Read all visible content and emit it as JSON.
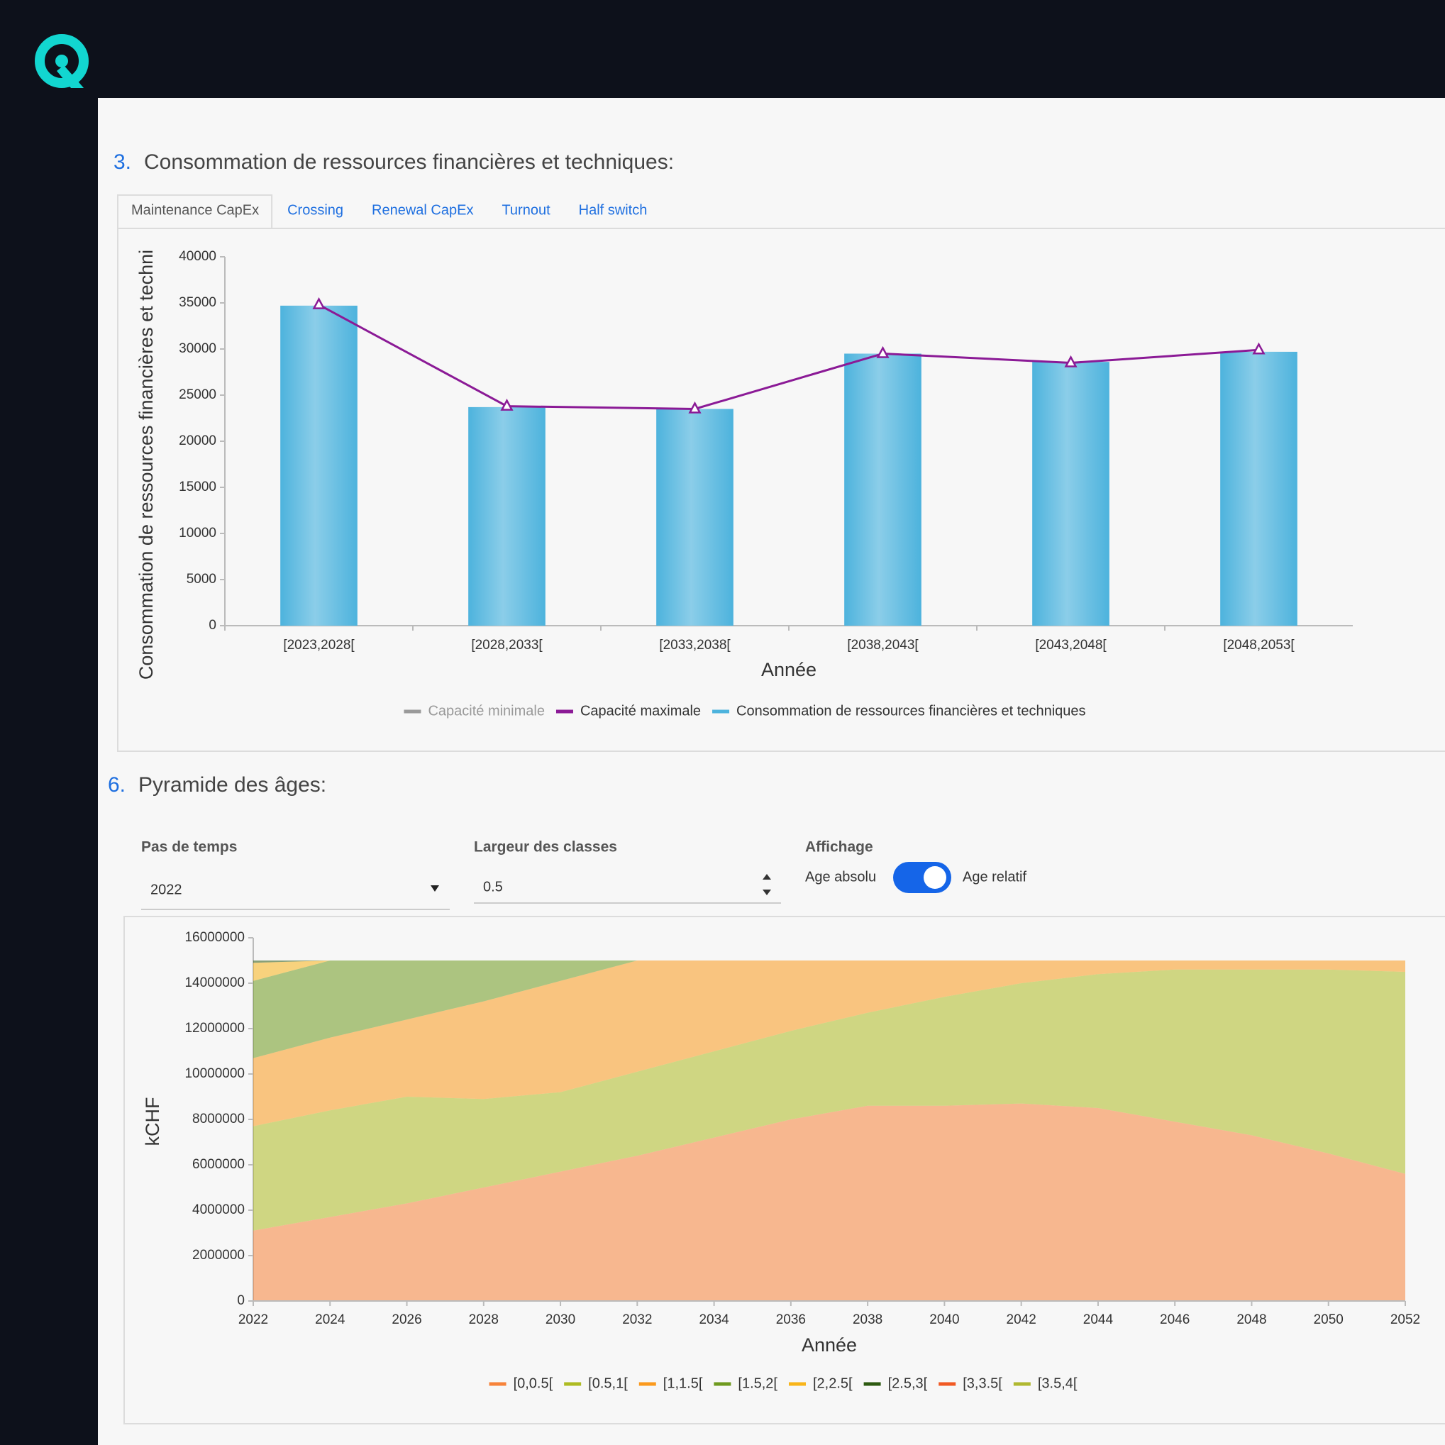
{
  "section_3": {
    "number": "3.",
    "title": "Consommation de ressources financières et techniques:",
    "tabs": [
      "Maintenance CapEx",
      "Crossing",
      "Renewal CapEx",
      "Turnout",
      "Half switch"
    ],
    "active_tab": 0
  },
  "section_6": {
    "number": "6.",
    "title": "Pyramide des âges:",
    "controls": {
      "time_step": {
        "label": "Pas de temps",
        "value": "2022"
      },
      "class_width": {
        "label": "Largeur des classes",
        "value": "0.5"
      },
      "display": {
        "label": "Affichage",
        "off_label": "Age absolu",
        "on_label": "Age relatif",
        "on": true
      }
    }
  },
  "chart_data": [
    {
      "type": "bar",
      "x_label": "Année",
      "y_label": "Consommation de ressources financières et techni",
      "categories": [
        "[2023,2028[",
        "[2028,2033[",
        "[2033,2038[",
        "[2038,2043[",
        "[2043,2048[",
        "[2048,2053["
      ],
      "ylim": [
        0,
        40000
      ],
      "yticks": [
        0,
        5000,
        10000,
        15000,
        20000,
        25000,
        30000,
        35000,
        40000
      ],
      "series": [
        {
          "name": "Capacité minimale",
          "type": "line",
          "color": "#9a9a9a",
          "visible": false,
          "values": [
            null,
            null,
            null,
            null,
            null,
            null
          ]
        },
        {
          "name": "Capacité maximale",
          "type": "line",
          "color": "#8b1a96",
          "marker": "triangle",
          "values": [
            34800,
            23800,
            23500,
            29500,
            28500,
            29900
          ]
        },
        {
          "name": "Consommation de ressources financières et techniques",
          "type": "bar",
          "color": "#4db3dd",
          "values": [
            34700,
            23700,
            23500,
            29500,
            28600,
            29700
          ]
        }
      ]
    },
    {
      "type": "area",
      "stacked": true,
      "x_label": "Année",
      "y_label": "kCHF",
      "x": [
        2022,
        2024,
        2026,
        2028,
        2030,
        2032,
        2034,
        2036,
        2038,
        2040,
        2042,
        2044,
        2046,
        2048,
        2050,
        2052
      ],
      "xlim": [
        2022,
        2052
      ],
      "xticks": [
        2022,
        2024,
        2026,
        2028,
        2030,
        2032,
        2034,
        2036,
        2038,
        2040,
        2042,
        2044,
        2046,
        2048,
        2050,
        2052
      ],
      "ylim": [
        0,
        16000000
      ],
      "yticks": [
        0,
        2000000,
        4000000,
        6000000,
        8000000,
        10000000,
        12000000,
        14000000,
        16000000
      ],
      "series": [
        {
          "name": "[0,0.5[",
          "color": "#f7833a",
          "values": [
            3100000,
            3700000,
            4300000,
            5000000,
            5700000,
            6400000,
            7200000,
            8000000,
            8600000,
            8600000,
            8700000,
            8500000,
            7900000,
            7300000,
            6500000,
            5600000
          ]
        },
        {
          "name": "[0.5,1[",
          "color": "#aebb22",
          "values": [
            4600000,
            4700000,
            4700000,
            3900000,
            3500000,
            3700000,
            3800000,
            3900000,
            4100000,
            4800000,
            5300000,
            5900000,
            6700000,
            7300000,
            8100000,
            8900000
          ]
        },
        {
          "name": "[1,1.5[",
          "color": "#fb9a1e",
          "values": [
            3000000,
            3200000,
            3400000,
            4300000,
            4900000,
            4900000,
            4000000,
            3100000,
            2300000,
            1600000,
            1000000,
            600000,
            400000,
            400000,
            400000,
            500000
          ]
        },
        {
          "name": "[1.5,2[",
          "color": "#6f9a1f",
          "values": [
            3400000,
            3400000,
            2600000,
            1800000,
            900000,
            0,
            0,
            0,
            0,
            0,
            0,
            0,
            0,
            0,
            0,
            0
          ]
        },
        {
          "name": "[2,2.5[",
          "color": "#f9b51a",
          "values": [
            800000,
            0,
            0,
            0,
            0,
            0,
            0,
            0,
            0,
            0,
            0,
            0,
            0,
            0,
            0,
            0
          ]
        },
        {
          "name": "[2.5,3[",
          "color": "#2d5a10",
          "values": [
            100000,
            0,
            0,
            0,
            0,
            0,
            0,
            0,
            0,
            0,
            0,
            0,
            0,
            0,
            0,
            0
          ]
        },
        {
          "name": "[3,3.5[",
          "color": "#f15a24",
          "values": [
            0,
            0,
            0,
            0,
            0,
            0,
            0,
            0,
            0,
            0,
            0,
            0,
            0,
            0,
            0,
            0
          ]
        },
        {
          "name": "[3.5,4[",
          "color": "#b0b830",
          "values": [
            0,
            0,
            0,
            0,
            0,
            0,
            0,
            0,
            0,
            0,
            0,
            0,
            0,
            0,
            0,
            0
          ]
        }
      ]
    }
  ]
}
